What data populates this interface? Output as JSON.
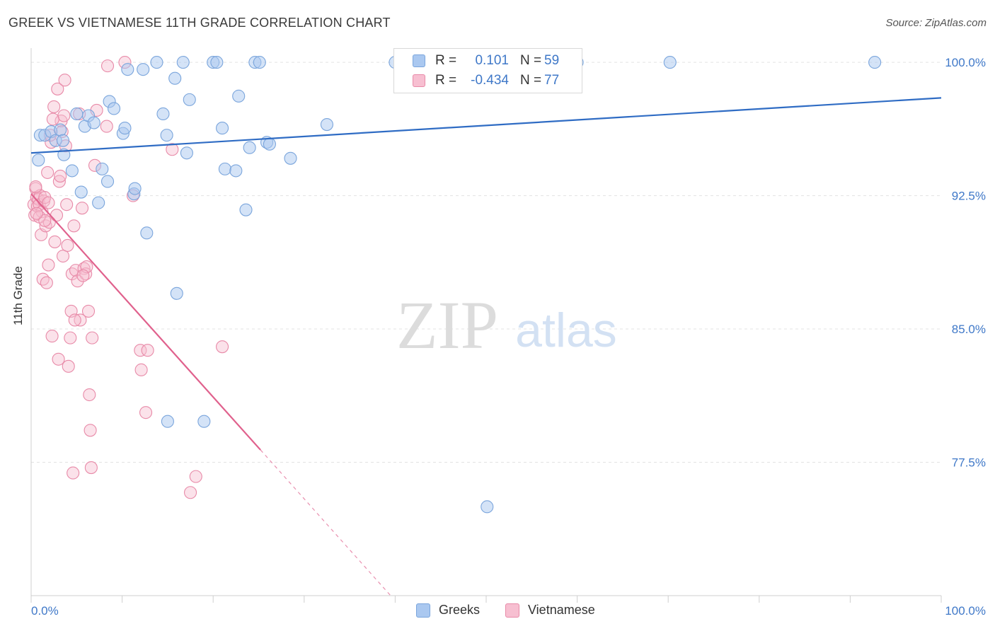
{
  "header": {
    "title": "GREEK VS VIETNAMESE 11TH GRADE CORRELATION CHART",
    "source": "Source: ZipAtlas.com"
  },
  "watermark": {
    "zip": "ZIP",
    "atlas": "atlas"
  },
  "legend": {
    "r_label": "R =",
    "n_label": "N =",
    "rows": [
      {
        "series": "Greeks",
        "r": "0.101",
        "n": "59"
      },
      {
        "series": "Vietnamese",
        "r": "-0.434",
        "n": "77"
      }
    ]
  },
  "colors": {
    "greek_fill": "#aac8f0",
    "greek_stroke": "#7aa5dc",
    "greek_line": "#2f6cc4",
    "viet_fill": "#f7bfd1",
    "viet_stroke": "#e88aa8",
    "viet_line": "#e0618d",
    "tick_label": "#3f78c8"
  },
  "chart_data": {
    "type": "scatter",
    "title": "GREEK VS VIETNAMESE 11TH GRADE CORRELATION CHART",
    "xlabel": "",
    "ylabel": "11th Grade",
    "xlim": [
      0,
      100
    ],
    "ylim": [
      70.0,
      100.8
    ],
    "x_tick_labels": [
      "0.0%",
      "100.0%"
    ],
    "y_ticks": [
      77.5,
      85.0,
      92.5,
      100.0
    ],
    "y_tick_labels": [
      "77.5%",
      "85.0%",
      "92.5%",
      "100.0%"
    ],
    "grid": "horizontal dashed",
    "legend_position": "top-center",
    "series": [
      {
        "name": "Greeks",
        "trend": {
          "x": [
            0,
            100
          ],
          "y": [
            94.9,
            98.0
          ]
        },
        "points": [
          [
            0.8,
            94.5
          ],
          [
            1.0,
            95.9
          ],
          [
            1.5,
            95.9
          ],
          [
            2.2,
            96.1
          ],
          [
            2.7,
            95.6
          ],
          [
            3.2,
            96.2
          ],
          [
            3.6,
            94.8
          ],
          [
            4.5,
            93.9
          ],
          [
            5.0,
            97.1
          ],
          [
            5.5,
            92.7
          ],
          [
            5.9,
            96.4
          ],
          [
            6.3,
            97.0
          ],
          [
            6.9,
            96.6
          ],
          [
            7.4,
            92.1
          ],
          [
            7.8,
            94.0
          ],
          [
            8.4,
            93.3
          ],
          [
            8.6,
            97.8
          ],
          [
            9.1,
            97.4
          ],
          [
            10.1,
            96.0
          ],
          [
            10.3,
            96.3
          ],
          [
            10.6,
            99.6
          ],
          [
            11.3,
            92.6
          ],
          [
            11.4,
            92.9
          ],
          [
            12.3,
            99.6
          ],
          [
            12.7,
            90.4
          ],
          [
            13.8,
            100.0
          ],
          [
            14.5,
            97.1
          ],
          [
            14.9,
            95.9
          ],
          [
            15.8,
            99.1
          ],
          [
            16.0,
            87.0
          ],
          [
            16.7,
            100.0
          ],
          [
            17.1,
            94.9
          ],
          [
            17.4,
            97.9
          ],
          [
            19.0,
            79.8
          ],
          [
            20.0,
            100.0
          ],
          [
            20.4,
            100.0
          ],
          [
            21.0,
            96.3
          ],
          [
            21.3,
            94.0
          ],
          [
            22.5,
            93.9
          ],
          [
            22.8,
            98.1
          ],
          [
            23.6,
            91.7
          ],
          [
            24.0,
            95.2
          ],
          [
            24.6,
            100.0
          ],
          [
            25.1,
            100.0
          ],
          [
            25.9,
            95.5
          ],
          [
            26.2,
            95.4
          ],
          [
            28.5,
            94.6
          ],
          [
            32.5,
            96.5
          ],
          [
            40.0,
            100.0
          ],
          [
            50.1,
            75.0
          ],
          [
            51.9,
            100.0
          ],
          [
            53.5,
            100.0
          ],
          [
            55.3,
            100.0
          ],
          [
            56.5,
            100.0
          ],
          [
            60.0,
            100.0
          ],
          [
            70.2,
            100.0
          ],
          [
            92.7,
            100.0
          ],
          [
            15.0,
            79.8
          ],
          [
            3.5,
            95.6
          ]
        ]
      },
      {
        "name": "Vietnamese",
        "trend": {
          "x": [
            0,
            25.2
          ],
          "y": [
            92.6,
            78.2
          ],
          "extrapolated_to": [
            39.5,
            70.0
          ]
        },
        "points": [
          [
            0.3,
            92.0
          ],
          [
            0.4,
            91.4
          ],
          [
            0.5,
            92.9
          ],
          [
            0.6,
            92.4
          ],
          [
            0.7,
            91.9
          ],
          [
            0.8,
            92.3
          ],
          [
            0.9,
            92.0
          ],
          [
            1.0,
            92.5
          ],
          [
            1.1,
            90.3
          ],
          [
            1.2,
            91.6
          ],
          [
            1.3,
            87.8
          ],
          [
            1.4,
            92.2
          ],
          [
            1.5,
            92.4
          ],
          [
            1.6,
            90.8
          ],
          [
            1.7,
            87.6
          ],
          [
            1.8,
            93.8
          ],
          [
            1.9,
            88.6
          ],
          [
            2.0,
            91.0
          ],
          [
            2.2,
            95.5
          ],
          [
            2.3,
            84.6
          ],
          [
            2.5,
            97.5
          ],
          [
            2.8,
            91.4
          ],
          [
            2.9,
            98.5
          ],
          [
            3.0,
            83.3
          ],
          [
            3.1,
            93.3
          ],
          [
            3.3,
            96.7
          ],
          [
            3.5,
            89.1
          ],
          [
            3.6,
            97.0
          ],
          [
            3.7,
            99.0
          ],
          [
            3.8,
            95.3
          ],
          [
            3.9,
            92.0
          ],
          [
            4.0,
            89.7
          ],
          [
            4.1,
            82.9
          ],
          [
            4.3,
            84.5
          ],
          [
            4.4,
            86.0
          ],
          [
            4.5,
            88.1
          ],
          [
            4.6,
            76.9
          ],
          [
            4.7,
            90.8
          ],
          [
            4.9,
            88.3
          ],
          [
            5.1,
            87.7
          ],
          [
            5.3,
            97.1
          ],
          [
            5.4,
            85.5
          ],
          [
            5.6,
            91.8
          ],
          [
            5.8,
            88.4
          ],
          [
            6.0,
            88.1
          ],
          [
            6.1,
            88.5
          ],
          [
            6.3,
            86.0
          ],
          [
            6.4,
            81.3
          ],
          [
            6.5,
            79.3
          ],
          [
            6.6,
            77.2
          ],
          [
            6.7,
            84.5
          ],
          [
            7.0,
            94.2
          ],
          [
            8.3,
            96.4
          ],
          [
            8.4,
            99.8
          ],
          [
            10.3,
            100.0
          ],
          [
            11.2,
            92.5
          ],
          [
            12.0,
            83.8
          ],
          [
            12.1,
            82.7
          ],
          [
            12.6,
            80.3
          ],
          [
            12.8,
            83.8
          ],
          [
            15.5,
            95.1
          ],
          [
            17.5,
            75.8
          ],
          [
            18.1,
            76.7
          ],
          [
            21.0,
            84.0
          ],
          [
            3.2,
            93.6
          ],
          [
            2.6,
            89.9
          ],
          [
            2.4,
            96.8
          ],
          [
            1.9,
            92.1
          ],
          [
            0.5,
            93.0
          ],
          [
            0.9,
            91.3
          ],
          [
            5.7,
            88.0
          ],
          [
            7.2,
            97.3
          ],
          [
            2.1,
            95.9
          ],
          [
            3.4,
            96.1
          ],
          [
            4.8,
            85.5
          ],
          [
            1.5,
            91.1
          ],
          [
            0.6,
            91.5
          ]
        ]
      }
    ]
  }
}
